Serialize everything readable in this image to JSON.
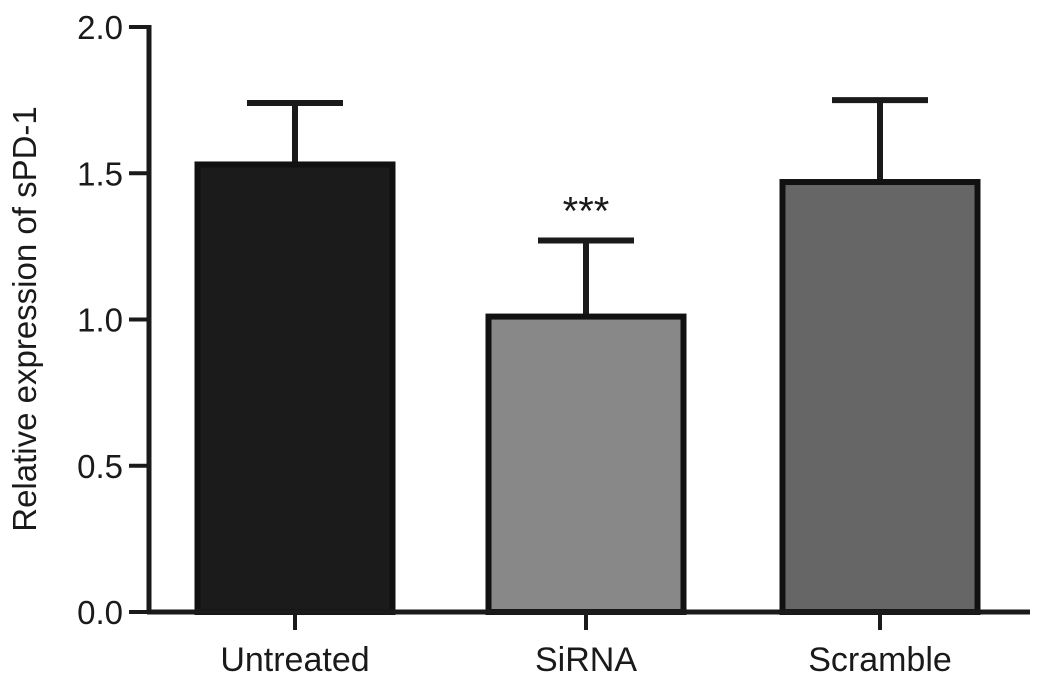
{
  "chart_data": {
    "type": "bar",
    "categories": [
      "Untreated",
      "SiRNA",
      "Scramble"
    ],
    "values": [
      1.53,
      1.01,
      1.47
    ],
    "error": [
      0.21,
      0.26,
      0.28
    ],
    "annotations": [
      {
        "category": "SiRNA",
        "text": "***"
      }
    ],
    "title": "",
    "xlabel": "",
    "ylabel": "Relative expression of sPD-1",
    "ylim": [
      0,
      2.0
    ],
    "yticks": [
      0.0,
      0.5,
      1.0,
      1.5,
      2.0
    ],
    "ytick_labels": [
      "0.0",
      "0.5",
      "1.0",
      "1.5",
      "2.0"
    ],
    "bar_colors": [
      "#1b1b1b",
      "#888888",
      "#666666"
    ],
    "grid": false
  }
}
